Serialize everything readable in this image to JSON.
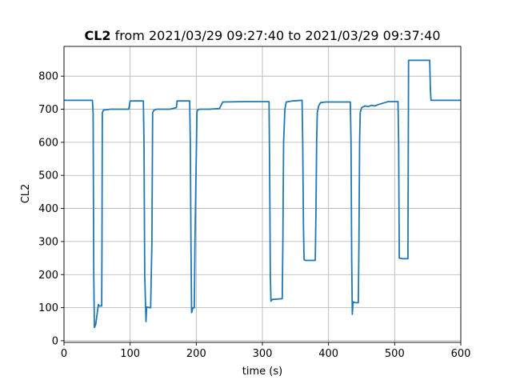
{
  "chart_data": {
    "type": "line",
    "title_bold": "CL2",
    "title_rest": " from 2021/03/29 09:27:40 to 2021/03/29 09:37:40",
    "xlabel": "time (s)",
    "ylabel": "CL2",
    "xlim": [
      0,
      600
    ],
    "ylim": [
      -5,
      890
    ],
    "grid": true,
    "xticks": [
      0,
      100,
      200,
      300,
      400,
      500,
      600
    ],
    "yticks": [
      0,
      100,
      200,
      300,
      400,
      500,
      600,
      700,
      800
    ],
    "series": [
      {
        "color": "#1f77b4",
        "x": [
          0,
          43,
          44,
          45,
          46,
          48,
          52,
          53,
          57,
          57.5,
          58,
          60,
          62,
          70,
          80,
          98,
          100,
          120,
          121,
          122,
          124,
          125,
          130,
          131,
          133,
          134,
          136,
          140,
          160,
          170,
          171,
          172,
          190,
          191,
          192,
          193,
          195,
          197,
          198,
          201,
          202,
          205,
          220,
          235,
          240,
          275,
          310,
          311,
          312,
          313,
          315,
          330,
          331,
          332,
          334,
          336,
          345,
          360,
          361,
          362,
          363,
          365,
          380,
          381,
          382,
          383,
          385,
          388,
          395,
          400,
          433,
          434,
          435,
          436,
          437,
          440,
          445,
          446,
          447,
          448,
          450,
          455,
          460,
          465,
          470,
          475,
          485,
          490,
          497,
          505,
          506,
          507,
          512,
          520,
          521,
          522,
          553,
          554,
          555,
          600
        ],
        "y": [
          727,
          727,
          690,
          200,
          40,
          50,
          110,
          105,
          105,
          300,
          690,
          698,
          698,
          700,
          700,
          700,
          725,
          725,
          600,
          200,
          58,
          102,
          100,
          100,
          300,
          690,
          697,
          700,
          700,
          705,
          725,
          725,
          725,
          600,
          300,
          85,
          100,
          100,
          300,
          690,
          698,
          700,
          700,
          702,
          722,
          723,
          723,
          500,
          200,
          120,
          125,
          127,
          300,
          600,
          700,
          722,
          725,
          727,
          600,
          350,
          245,
          243,
          243,
          400,
          600,
          690,
          710,
          720,
          722,
          722,
          722,
          600,
          250,
          80,
          118,
          115,
          115,
          300,
          600,
          690,
          705,
          710,
          708,
          712,
          710,
          714,
          720,
          723,
          723,
          723,
          600,
          250,
          248,
          248,
          848,
          848,
          848,
          760,
          727,
          727
        ]
      }
    ]
  }
}
